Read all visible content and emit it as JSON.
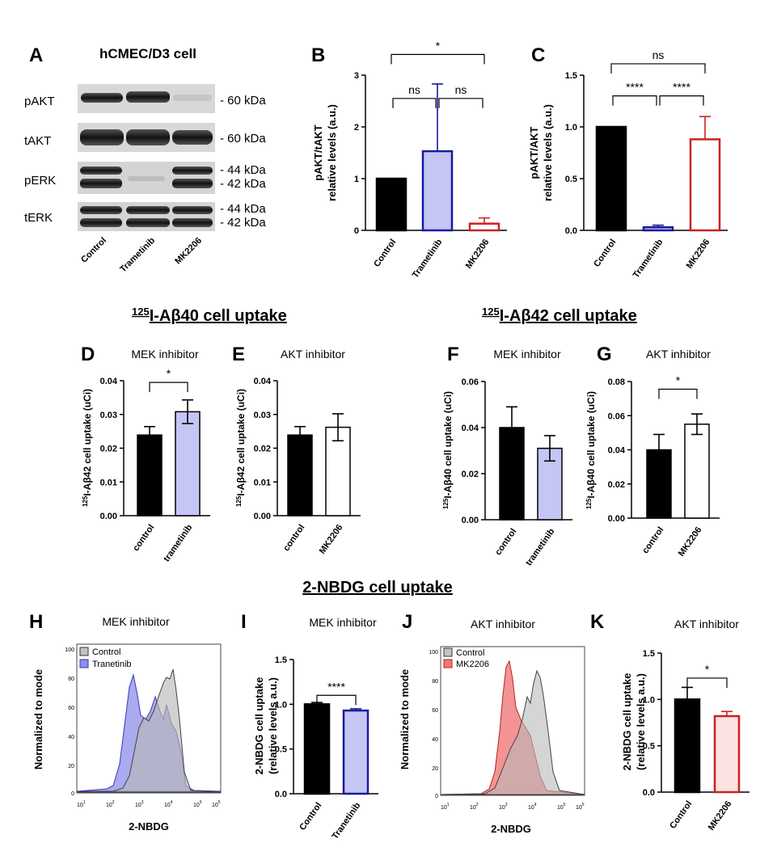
{
  "panel_a": {
    "letter": "A",
    "title": "hCMEC/D3  cell",
    "rows": [
      {
        "name": "pAKT",
        "sizes": [
          "- 60 kDa"
        ]
      },
      {
        "name": "tAKT",
        "sizes": [
          "- 60 kDa"
        ]
      },
      {
        "name": "pERK",
        "sizes": [
          "- 44 kDa",
          "- 42 kDa"
        ]
      },
      {
        "name": "tERK",
        "sizes": [
          "- 44 kDa",
          "- 42 kDa"
        ]
      }
    ],
    "lanes": [
      "Control",
      "Trametinib",
      "MK2206"
    ]
  },
  "sections": {
    "ab40_prefix": "125",
    "ab40_rest": "I-Aβ40 cell uptake",
    "ab42_prefix": "125",
    "ab42_rest": "I-Aβ42 cell uptake",
    "nbdg": "2-NBDG cell uptake"
  },
  "flow_panels": [
    {
      "letter": "H",
      "title": "MEK inhibitor",
      "ylabel": "Normalized to mode",
      "xlabel": "2-NBDG",
      "legend": [
        "Control",
        "Tranetinib"
      ],
      "y_ticks": [
        "100",
        "80",
        "60",
        "40",
        "20",
        "0"
      ],
      "x_ticks": [
        "10",
        "10",
        "10",
        "10",
        "10",
        "10"
      ],
      "x_exps": [
        "1",
        "2",
        "3",
        "4",
        "5",
        "5"
      ]
    },
    {
      "letter": "J",
      "title": "AKT inhibitor",
      "ylabel": "Normalized to mode",
      "xlabel": "2-NBDG",
      "legend": [
        "Control",
        "MK2206"
      ],
      "y_ticks": [
        "100",
        "80",
        "60",
        "40",
        "20",
        "0"
      ],
      "x_ticks": [
        "10",
        "10",
        "10",
        "10",
        "10",
        "10"
      ],
      "x_exps": [
        "1",
        "2",
        "3",
        "4",
        "5",
        "5"
      ]
    }
  ],
  "chart_data": [
    {
      "id": "B",
      "type": "bar",
      "title": "",
      "ylabel": [
        "pAKT/tAKT",
        "relative levels (a.u.)"
      ],
      "categories": [
        "Control",
        "Trametinib",
        "MK2206"
      ],
      "values": [
        1.0,
        1.53,
        0.13
      ],
      "errors": [
        0,
        1.3,
        0.11
      ],
      "ylim": [
        0,
        3
      ],
      "yticks": [
        "0",
        "1",
        "2",
        "3"
      ],
      "colors": [
        "#000000",
        "#c6c6f5",
        "#ffffff"
      ],
      "edges": [
        "#000000",
        "#1a1aa0",
        "#cc2222"
      ],
      "significance": [
        {
          "from": 0,
          "to": 1,
          "label": "ns",
          "level": 2.55
        },
        {
          "from": 1,
          "to": 2,
          "label": "ns",
          "level": 2.55
        },
        {
          "from": 0,
          "to": 2,
          "label": "*",
          "level": 3.4
        }
      ]
    },
    {
      "id": "C",
      "type": "bar",
      "title": "",
      "ylabel": [
        "pAKT/AKT",
        "relative levels (a.u.)"
      ],
      "categories": [
        "Control",
        "Trametinib",
        "MK2206"
      ],
      "values": [
        1.0,
        0.03,
        0.88
      ],
      "errors": [
        0,
        0.02,
        0.22
      ],
      "ylim": [
        0,
        1.5
      ],
      "yticks": [
        "0.0",
        "0.5",
        "1.0",
        "1.5"
      ],
      "colors": [
        "#000000",
        "#c6c6f5",
        "#ffffff"
      ],
      "edges": [
        "#000000",
        "#1a1aa0",
        "#cc2222"
      ],
      "significance": [
        {
          "from": 0,
          "to": 1,
          "label": "****",
          "level": 1.3
        },
        {
          "from": 1,
          "to": 2,
          "label": "****",
          "level": 1.3
        },
        {
          "from": 0,
          "to": 2,
          "label": "ns",
          "level": 1.61
        }
      ]
    },
    {
      "id": "D",
      "type": "bar",
      "title": "MEK inhibitor",
      "ylabel_prefix": "125",
      "ylabel": "I-Aβ42 cell uptake (uCi)",
      "categories": [
        "control",
        "trametinib"
      ],
      "values": [
        0.0239,
        0.0308
      ],
      "errors": [
        0.0025,
        0.0035
      ],
      "ylim": [
        0,
        0.04
      ],
      "yticks": [
        "0.00",
        "0.01",
        "0.02",
        "0.03",
        "0.04"
      ],
      "colors": [
        "#000000",
        "#c6c6f5"
      ],
      "edges": [
        "#000000",
        "#000000"
      ],
      "significance": [
        {
          "from": 0,
          "to": 1,
          "label": "*",
          "level": 0.0395
        }
      ]
    },
    {
      "id": "E",
      "type": "bar",
      "title": "AKT inhibitor",
      "ylabel_prefix": "125",
      "ylabel": "I-Aβ42 cell uptake (uCi)",
      "categories": [
        "control",
        "MK2206"
      ],
      "values": [
        0.0239,
        0.0262
      ],
      "errors": [
        0.0025,
        0.004
      ],
      "ylim": [
        0,
        0.04
      ],
      "yticks": [
        "0.00",
        "0.01",
        "0.02",
        "0.03",
        "0.04"
      ],
      "colors": [
        "#000000",
        "#ffffff"
      ],
      "edges": [
        "#000000",
        "#000000"
      ],
      "significance": []
    },
    {
      "id": "F",
      "type": "bar",
      "title": "MEK inhibitor",
      "ylabel_prefix": "125",
      "ylabel": "I-Aβ40 cell uptake (uCi)",
      "categories": [
        "control",
        "trametinib"
      ],
      "values": [
        0.04,
        0.031
      ],
      "errors": [
        0.009,
        0.0055
      ],
      "ylim": [
        0,
        0.06
      ],
      "yticks": [
        "0.00",
        "0.02",
        "0.04",
        "0.06"
      ],
      "colors": [
        "#000000",
        "#c6c6f5"
      ],
      "edges": [
        "#000000",
        "#000000"
      ],
      "significance": []
    },
    {
      "id": "G",
      "type": "bar",
      "title": "AKT inhibitor",
      "ylabel_prefix": "125",
      "ylabel": "I-Aβ40 cell uptake (uCi)",
      "categories": [
        "control",
        "MK2206"
      ],
      "values": [
        0.04,
        0.055
      ],
      "errors": [
        0.009,
        0.006
      ],
      "ylim": [
        0,
        0.08
      ],
      "yticks": [
        "0.00",
        "0.02",
        "0.04",
        "0.06",
        "0.08"
      ],
      "colors": [
        "#000000",
        "#ffffff"
      ],
      "edges": [
        "#000000",
        "#000000"
      ],
      "significance": [
        {
          "from": 0,
          "to": 1,
          "label": "*",
          "level": 0.0755
        }
      ]
    },
    {
      "id": "I",
      "type": "bar",
      "title": "MEK inhibitor",
      "ylabel": [
        "2-NBDG cell uptake",
        "(relative levels a.u.)"
      ],
      "categories": [
        "Control",
        "Tranetinib"
      ],
      "values": [
        1.0,
        0.93
      ],
      "errors": [
        0.02,
        0.02
      ],
      "ylim": [
        0,
        1.5
      ],
      "yticks": [
        "0.0",
        "0.5",
        "1.0",
        "1.5"
      ],
      "colors": [
        "#000000",
        "#c6c6f5"
      ],
      "edges": [
        "#000000",
        "#1a1aa0"
      ],
      "significance": [
        {
          "from": 0,
          "to": 1,
          "label": "****",
          "level": 1.1
        }
      ]
    },
    {
      "id": "K",
      "type": "bar",
      "title": "AKT inhibitor",
      "ylabel": [
        "2-NBDG cell uptake",
        "(relative levels a.u.)"
      ],
      "categories": [
        "Control",
        "MK2206"
      ],
      "values": [
        1.0,
        0.82
      ],
      "errors": [
        0.13,
        0.05
      ],
      "ylim": [
        0,
        1.5
      ],
      "yticks": [
        "0.0",
        "0.5",
        "1.0",
        "1.5"
      ],
      "colors": [
        "#000000",
        "#fde2e2"
      ],
      "edges": [
        "#000000",
        "#cc2222"
      ],
      "significance": [
        {
          "from": 0,
          "to": 1,
          "label": "*",
          "level": 1.23
        }
      ]
    }
  ]
}
